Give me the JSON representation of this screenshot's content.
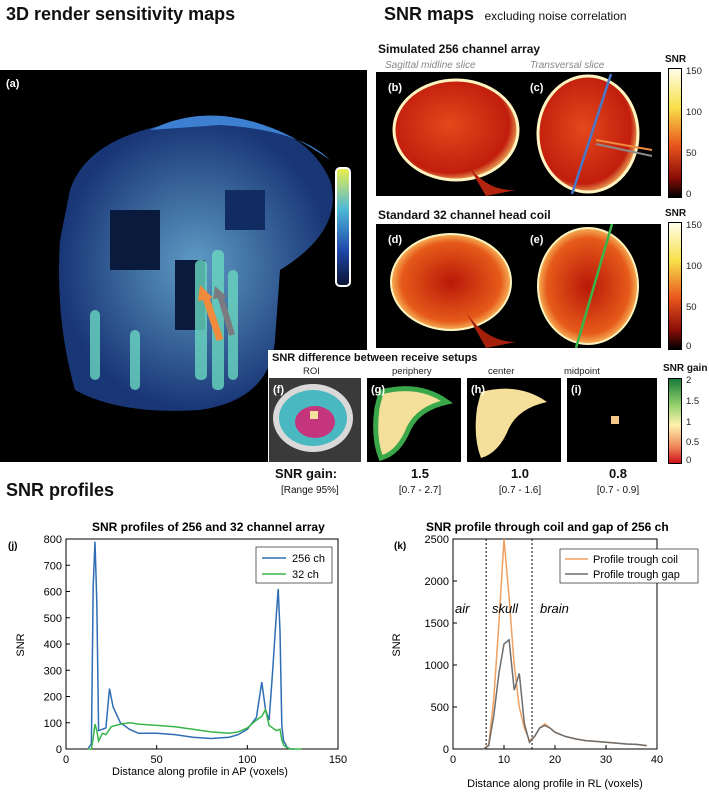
{
  "titles": {
    "render": "3D render sensitivity maps",
    "snrmaps": "SNR maps",
    "snrmaps_sub": "excluding noise correlation",
    "profiles": "SNR profiles"
  },
  "sim": {
    "title": "Simulated 256 channel array",
    "sag": "Sagittal midline slice",
    "trans": "Transversal slice"
  },
  "std": {
    "title": "Standard 32 channel head coil"
  },
  "diff": {
    "title": "SNR difference between receive setups",
    "cols": [
      "ROI",
      "periphery",
      "center",
      "midpoint"
    ]
  },
  "panels": {
    "a": "(a)",
    "b": "(b)",
    "c": "(c)",
    "d": "(d)",
    "e": "(e)",
    "f": "(f)",
    "g": "(g)",
    "h": "(h)",
    "i": "(i)",
    "j": "(j)",
    "k": "(k)"
  },
  "colorbars": {
    "snr_label": "SNR",
    "snr_ticks": [
      "150",
      "100",
      "50",
      "0"
    ],
    "gain_label": "SNR gain",
    "gain_ticks": [
      "2",
      "1.5",
      "1",
      "0.5",
      "0"
    ]
  },
  "gain": {
    "label": "SNR gain:",
    "range_label": "[Range 95%]",
    "values": [
      "1.5",
      "1.0",
      "0.8"
    ],
    "ranges": [
      "[0.7 - 2.7]",
      "[0.7 - 1.6]",
      "[0.7 - 0.9]"
    ]
  },
  "chart_data": [
    {
      "type": "line",
      "title": "SNR profiles of 256 and 32 channel array",
      "xlabel": "Distance along profile in AP (voxels)",
      "ylabel": "SNR",
      "xlim": [
        0,
        150
      ],
      "ylim": [
        0,
        800
      ],
      "xticks": [
        0,
        50,
        100,
        150
      ],
      "yticks": [
        0,
        100,
        200,
        300,
        400,
        500,
        600,
        700,
        800
      ],
      "legend": "top-right",
      "series": [
        {
          "name": "256 ch",
          "color": "#2f6db5",
          "x": [
            12,
            14,
            15,
            16,
            17,
            18,
            20,
            22,
            24,
            26,
            30,
            35,
            40,
            50,
            60,
            70,
            80,
            90,
            95,
            100,
            105,
            108,
            110,
            112,
            114,
            116,
            117,
            118,
            119,
            120,
            121,
            122,
            124,
            126
          ],
          "y": [
            0,
            20,
            620,
            790,
            560,
            70,
            75,
            80,
            230,
            160,
            100,
            75,
            60,
            60,
            55,
            45,
            40,
            45,
            55,
            75,
            120,
            255,
            150,
            110,
            300,
            510,
            610,
            450,
            90,
            30,
            20,
            5,
            0,
            0
          ]
        },
        {
          "name": "32 ch",
          "color": "#3ab54a",
          "x": [
            12,
            14,
            15,
            16,
            17,
            18,
            20,
            22,
            25,
            30,
            35,
            40,
            50,
            60,
            70,
            80,
            90,
            95,
            100,
            105,
            108,
            110,
            112,
            114,
            116,
            118,
            119,
            120,
            122,
            124,
            126,
            130
          ],
          "y": [
            0,
            0,
            40,
            95,
            70,
            30,
            60,
            55,
            85,
            95,
            100,
            95,
            90,
            85,
            75,
            65,
            60,
            65,
            80,
            110,
            125,
            150,
            90,
            80,
            70,
            75,
            35,
            15,
            5,
            0,
            0,
            0
          ]
        }
      ]
    },
    {
      "type": "line",
      "title": "SNR profile through coil and gap of 256 ch",
      "xlabel": "Distance along profile in RL (voxels)",
      "ylabel": "SNR",
      "xlim": [
        0,
        40
      ],
      "ylim": [
        0,
        2500
      ],
      "xticks": [
        0,
        10,
        20,
        30,
        40
      ],
      "yticks": [
        0,
        500,
        1000,
        1500,
        2000,
        2500
      ],
      "legend": "top-right",
      "annotations": [
        "air",
        "skull",
        "brain"
      ],
      "vlines": [
        6.5,
        15.5
      ],
      "series": [
        {
          "name": "Profile trough coil",
          "color": "#f0a060",
          "x": [
            6,
            7,
            8,
            9,
            10,
            11,
            12,
            13,
            14,
            15,
            16,
            17,
            18,
            19,
            20,
            22,
            24,
            26,
            28,
            30,
            32,
            34,
            36,
            38
          ],
          "y": [
            0,
            50,
            600,
            1500,
            2500,
            1800,
            1000,
            500,
            250,
            100,
            150,
            250,
            300,
            250,
            200,
            150,
            120,
            100,
            90,
            80,
            70,
            60,
            55,
            40
          ]
        },
        {
          "name": "Profile trough gap",
          "color": "#6d6d6d",
          "x": [
            6,
            7,
            8,
            9,
            10,
            11,
            12,
            13,
            14,
            15,
            16,
            17,
            18,
            19,
            20,
            22,
            24,
            26,
            28,
            30,
            32,
            34,
            36,
            38
          ],
          "y": [
            0,
            40,
            400,
            900,
            1250,
            1300,
            700,
            900,
            300,
            80,
            150,
            250,
            280,
            250,
            200,
            150,
            120,
            100,
            90,
            80,
            70,
            60,
            55,
            40
          ]
        }
      ]
    }
  ]
}
